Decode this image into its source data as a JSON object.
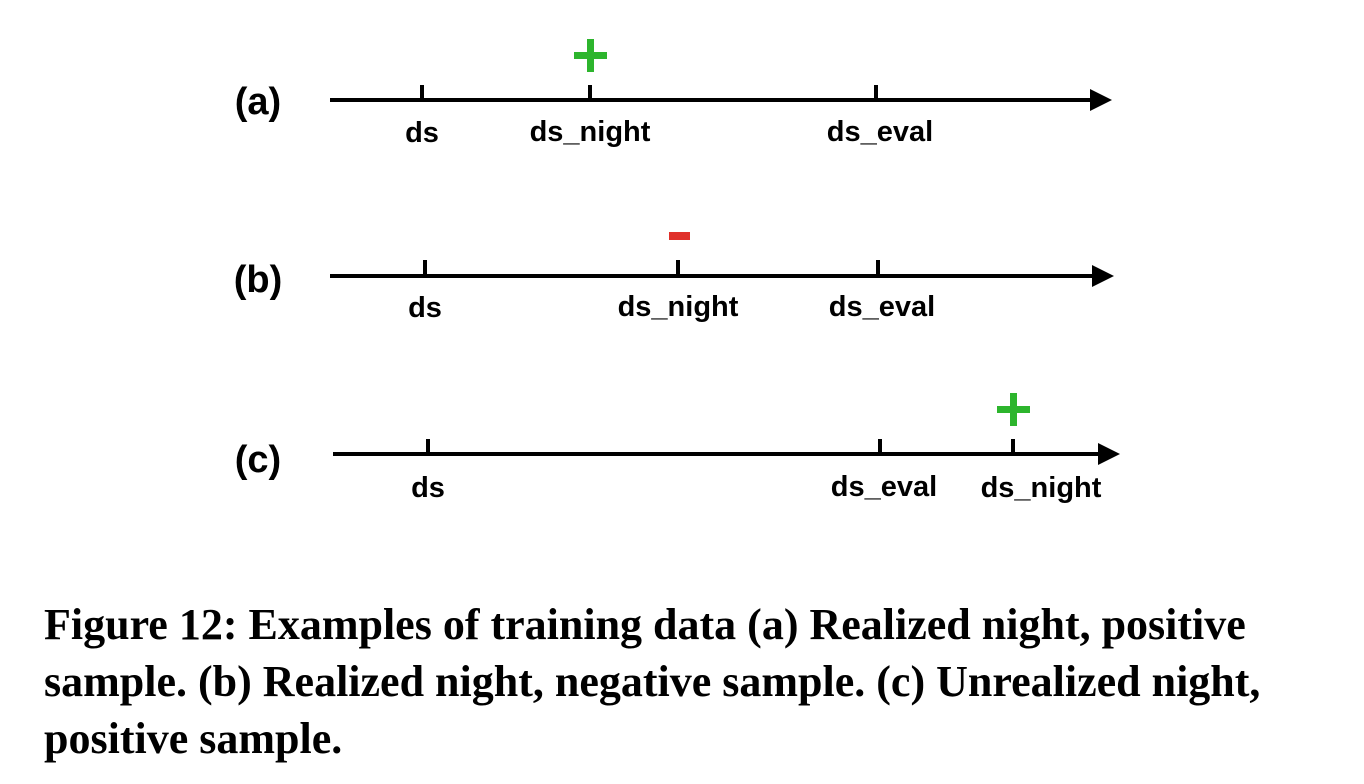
{
  "diagram": {
    "colors": {
      "axis": "#000000",
      "positive": "#2db52d",
      "negative": "#e0302a"
    },
    "rows": [
      {
        "label": "(a)",
        "ticks": [
          {
            "text": "ds"
          },
          {
            "text": "ds_night"
          },
          {
            "text": "ds_eval"
          }
        ],
        "marker": {
          "symbol": "+",
          "kind": "positive",
          "over": "ds_night"
        }
      },
      {
        "label": "(b)",
        "ticks": [
          {
            "text": "ds"
          },
          {
            "text": "ds_night"
          },
          {
            "text": "ds_eval"
          }
        ],
        "marker": {
          "symbol": "-",
          "kind": "negative",
          "over": "ds_night"
        }
      },
      {
        "label": "(c)",
        "ticks": [
          {
            "text": "ds"
          },
          {
            "text": "ds_eval"
          },
          {
            "text": "ds_night"
          }
        ],
        "marker": {
          "symbol": "+",
          "kind": "positive",
          "over": "ds_night"
        }
      }
    ]
  },
  "caption": "Figure 12: Examples of training data (a) Realized night, positive sample. (b) Realized night, negative sample. (c) Unrealized night, positive sample."
}
